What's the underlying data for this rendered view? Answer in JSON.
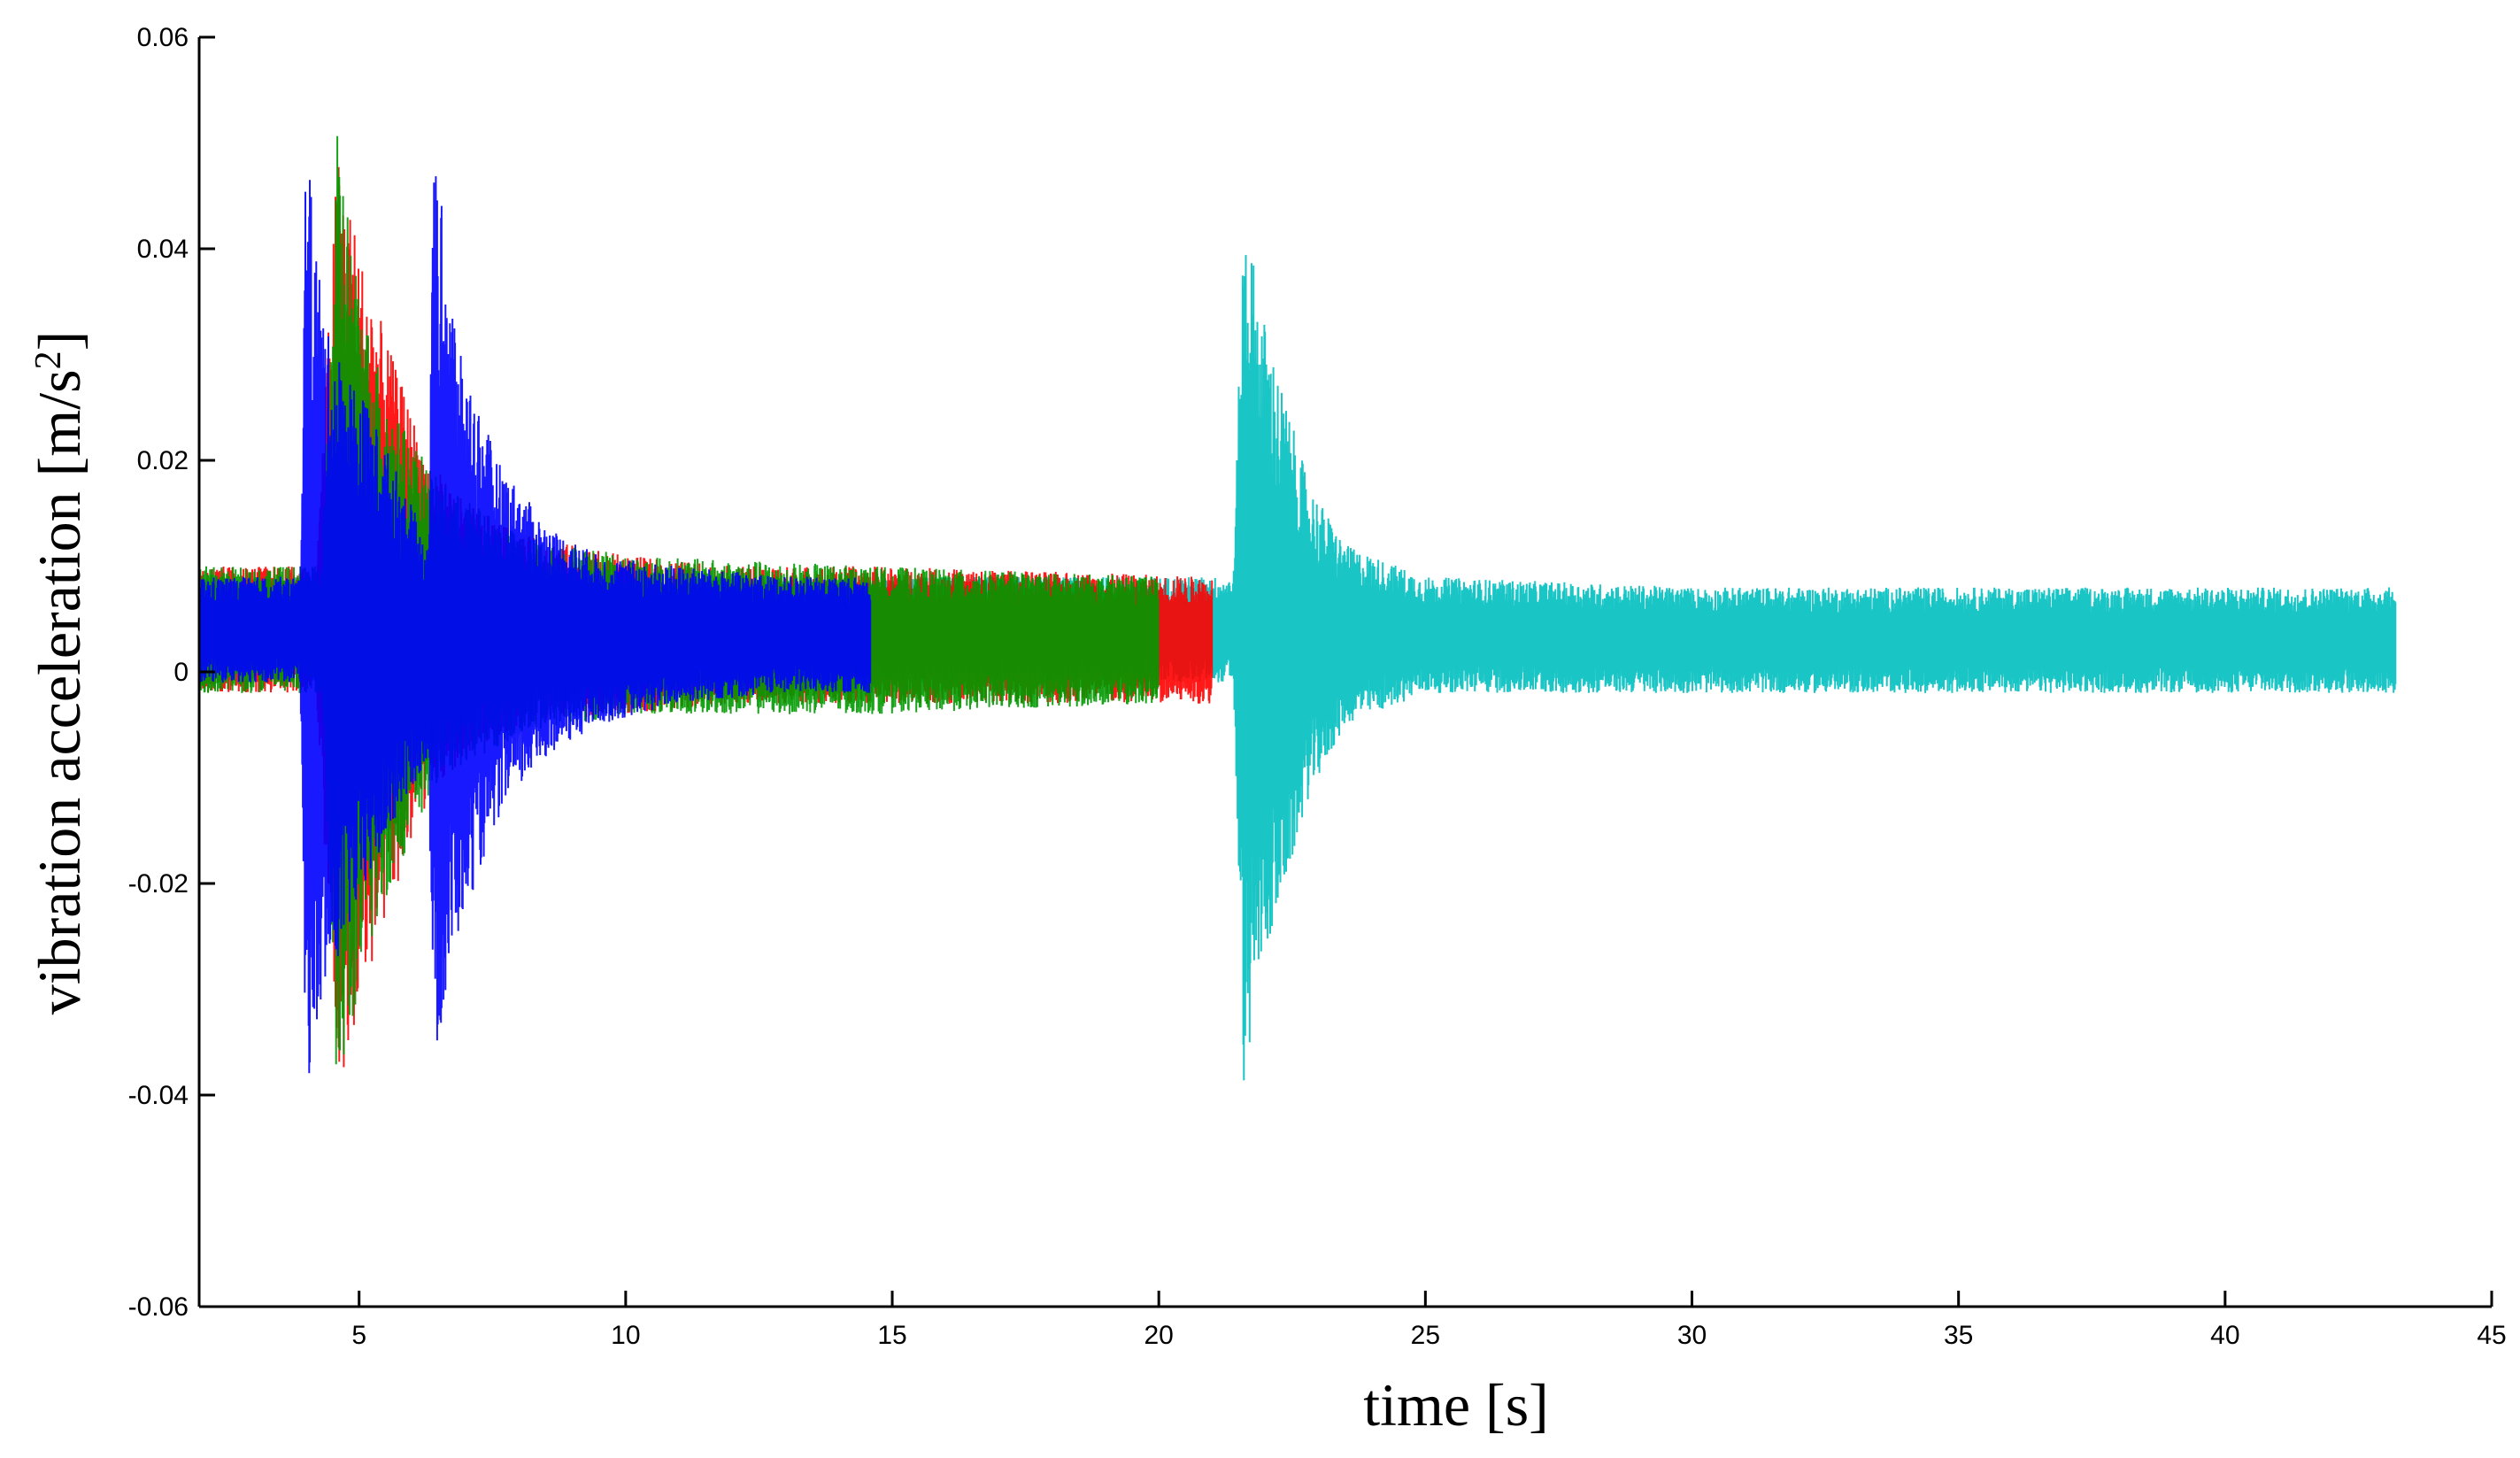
{
  "chart_data": {
    "type": "line",
    "xlabel": "time [s]",
    "ylabel_main": "vibration acceleration [m/s",
    "ylabel_sup": "2",
    "ylabel_end": "]",
    "xlim": [
      2,
      45
    ],
    "ylim": [
      -0.06,
      0.06
    ],
    "xticks": [
      5,
      10,
      15,
      20,
      25,
      30,
      35,
      40,
      45
    ],
    "yticks": [
      0.06,
      0.04,
      0.02,
      0,
      -0.02,
      -0.04,
      -0.06
    ],
    "xtick_labels": [
      "5",
      "10",
      "15",
      "20",
      "25",
      "30",
      "35",
      "40",
      "45"
    ],
    "ytick_labels": [
      "0.06",
      "0.04",
      "0.02",
      "0",
      "-0.02",
      "-0.04",
      "-0.06"
    ],
    "grid": false,
    "series": [
      {
        "color": "#00bfbf",
        "x": [
          2.0,
          14.6,
          21.4,
          21.6,
          21.9,
          22.3,
          22.8,
          23.5,
          25.0,
          30.0,
          35.0,
          40.0,
          43.2
        ],
        "ymax": [
          0.009,
          0.009,
          0.009,
          0.045,
          0.035,
          0.027,
          0.018,
          0.012,
          0.009,
          0.008,
          0.008,
          0.008,
          0.008
        ],
        "ymin": [
          -0.001,
          -0.001,
          -0.001,
          -0.04,
          -0.028,
          -0.022,
          -0.012,
          -0.005,
          -0.002,
          -0.002,
          -0.002,
          -0.002,
          -0.002
        ]
      },
      {
        "color": "#ff0000",
        "x": [
          2.0,
          4.2,
          4.6,
          5.0,
          5.6,
          6.3,
          7.0,
          8.0,
          10.0,
          12.0,
          14.6,
          21.0
        ],
        "ymax": [
          0.01,
          0.01,
          0.05,
          0.04,
          0.03,
          0.02,
          0.016,
          0.013,
          0.011,
          0.01,
          0.01,
          0.009
        ],
        "ymin": [
          -0.002,
          -0.002,
          -0.04,
          -0.032,
          -0.022,
          -0.012,
          -0.008,
          -0.005,
          -0.004,
          -0.003,
          -0.003,
          -0.003
        ]
      },
      {
        "color": "#009900",
        "x": [
          2.0,
          4.3,
          4.6,
          5.0,
          5.6,
          6.5,
          8.0,
          10.0,
          14.6,
          20.0
        ],
        "ymax": [
          0.01,
          0.01,
          0.052,
          0.036,
          0.025,
          0.018,
          0.013,
          0.011,
          0.01,
          0.009
        ],
        "ymin": [
          -0.002,
          -0.002,
          -0.042,
          -0.03,
          -0.02,
          -0.01,
          -0.006,
          -0.004,
          -0.004,
          -0.003
        ]
      },
      {
        "color": "#0000ff",
        "x": [
          2.0,
          3.9,
          4.0,
          4.4,
          5.0,
          5.8,
          6.3,
          6.4,
          6.9,
          7.6,
          8.5,
          9.5,
          11.0,
          13.0,
          14.6
        ],
        "ymax": [
          0.009,
          0.009,
          0.05,
          0.032,
          0.027,
          0.018,
          0.012,
          0.05,
          0.03,
          0.02,
          0.014,
          0.011,
          0.01,
          0.009,
          0.009
        ],
        "ymin": [
          -0.001,
          -0.001,
          -0.04,
          -0.03,
          -0.022,
          -0.013,
          -0.008,
          -0.038,
          -0.024,
          -0.014,
          -0.008,
          -0.005,
          -0.003,
          -0.002,
          -0.002
        ]
      }
    ]
  }
}
